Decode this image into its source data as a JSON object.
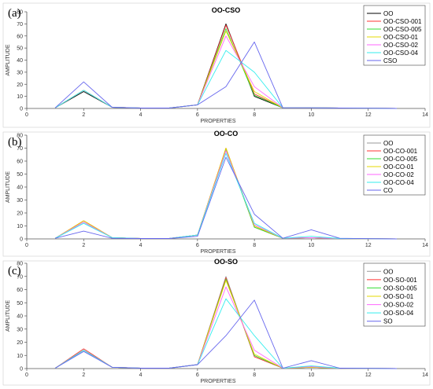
{
  "chart_data": [
    {
      "type": "line",
      "panel_label": "(a)",
      "title": "OO-CSO",
      "xlabel": "PROPERTIES",
      "ylabel": "AMPLITUDE",
      "xlim": [
        0,
        14
      ],
      "ylim": [
        0,
        80
      ],
      "xticks": [
        0,
        2,
        4,
        6,
        8,
        10,
        12,
        14
      ],
      "yticks": [
        0,
        10,
        20,
        30,
        40,
        50,
        60,
        70,
        80
      ],
      "legend_position": "top-right",
      "x": [
        1,
        2,
        3,
        4,
        5,
        6,
        7,
        8,
        9,
        10,
        11,
        12,
        13
      ],
      "series": [
        {
          "name": "OO",
          "color": "#000000",
          "values": [
            0.5,
            14,
            1,
            0.3,
            0.3,
            3,
            70,
            10,
            0.5,
            0.5,
            0.3,
            0.2,
            0
          ]
        },
        {
          "name": "OO-CSO-001",
          "color": "#ff3333",
          "values": [
            0.5,
            15,
            1,
            0.3,
            0.3,
            3,
            69,
            12,
            0.5,
            0.5,
            0.3,
            0.2,
            0
          ]
        },
        {
          "name": "OO-CSO-005",
          "color": "#33dd33",
          "values": [
            0.5,
            15,
            1,
            0.3,
            0.3,
            3,
            66,
            11,
            0.5,
            0.5,
            0.3,
            0.2,
            0
          ]
        },
        {
          "name": "OO-CSO-01",
          "color": "#e6d800",
          "values": [
            0.5,
            15,
            1,
            0.3,
            0.3,
            3,
            64,
            14,
            0.5,
            0.5,
            0.3,
            0.2,
            0
          ]
        },
        {
          "name": "OO-CSO-02",
          "color": "#ff66ff",
          "values": [
            0.5,
            15,
            1,
            0.3,
            0.3,
            3,
            60,
            18,
            0.5,
            0.5,
            0.3,
            0.2,
            0
          ]
        },
        {
          "name": "OO-CSO-04",
          "color": "#33eeee",
          "values": [
            0.5,
            15,
            1,
            0.3,
            0.3,
            3,
            48,
            30,
            0.5,
            0.5,
            0.3,
            0.2,
            0
          ]
        },
        {
          "name": "CSO",
          "color": "#6666ee",
          "values": [
            0.5,
            22,
            1,
            0.3,
            0.3,
            3,
            18,
            55,
            0.5,
            0.5,
            0.3,
            0.2,
            0
          ]
        }
      ]
    },
    {
      "type": "line",
      "panel_label": "(b)",
      "title": "OO-CO",
      "xlabel": "PROPERTIES",
      "ylabel": "AMPLITUDE",
      "xlim": [
        0,
        14
      ],
      "ylim": [
        0,
        80
      ],
      "xticks": [
        0,
        2,
        4,
        6,
        8,
        10,
        12,
        14
      ],
      "yticks": [
        0,
        10,
        20,
        30,
        40,
        50,
        60,
        70,
        80
      ],
      "legend_position": "top-right",
      "x": [
        1,
        2,
        3,
        4,
        5,
        6,
        7,
        8,
        9,
        10,
        11,
        12,
        13
      ],
      "series": [
        {
          "name": "OO",
          "color": "#999999",
          "values": [
            0.5,
            14,
            1,
            0.3,
            0.3,
            3,
            70,
            10,
            0.5,
            1,
            0.3,
            0.2,
            0
          ]
        },
        {
          "name": "OO-CO-001",
          "color": "#ff3333",
          "values": [
            0.5,
            14,
            1,
            0.3,
            0.3,
            3,
            70,
            9,
            0.5,
            1,
            0.3,
            0.2,
            0
          ]
        },
        {
          "name": "OO-CO-005",
          "color": "#33dd33",
          "values": [
            0.5,
            13,
            1,
            0.3,
            0.3,
            3,
            69,
            9,
            0.5,
            1,
            0.3,
            0.2,
            0
          ]
        },
        {
          "name": "OO-CO-01",
          "color": "#e6d800",
          "values": [
            0.5,
            14,
            1,
            0.3,
            0.3,
            3,
            70,
            10,
            0.5,
            1,
            0.3,
            0.2,
            0
          ]
        },
        {
          "name": "OO-CO-02",
          "color": "#ff66ff",
          "values": [
            0.5,
            13,
            1,
            0.3,
            0.3,
            3,
            68,
            11,
            0.5,
            1,
            0.3,
            0.2,
            0
          ]
        },
        {
          "name": "OO-CO-04",
          "color": "#33eeee",
          "values": [
            0.5,
            12,
            1,
            0.3,
            0.3,
            3,
            66,
            12,
            0.5,
            2,
            0.3,
            0.2,
            0
          ]
        },
        {
          "name": "CO",
          "color": "#6666ee",
          "values": [
            0.5,
            6,
            0.5,
            0.3,
            0.3,
            2,
            63,
            19,
            0.5,
            7,
            0.5,
            0.2,
            0
          ]
        }
      ]
    },
    {
      "type": "line",
      "panel_label": "(c)",
      "title": "OO-SO",
      "xlabel": "PROPERTIES",
      "ylabel": "AMPLITUDE",
      "xlim": [
        0,
        14
      ],
      "ylim": [
        0,
        80
      ],
      "xticks": [
        0,
        2,
        4,
        6,
        8,
        10,
        12,
        14
      ],
      "yticks": [
        0,
        10,
        20,
        30,
        40,
        50,
        60,
        70,
        80
      ],
      "legend_position": "top-right",
      "x": [
        1,
        2,
        3,
        4,
        5,
        6,
        7,
        8,
        9,
        10,
        11,
        12,
        13
      ],
      "series": [
        {
          "name": "OO",
          "color": "#999999",
          "values": [
            0.3,
            14,
            1,
            0.3,
            0.3,
            3,
            70,
            9,
            0.3,
            1,
            0.3,
            0.2,
            0
          ]
        },
        {
          "name": "OO-SO-001",
          "color": "#ff3333",
          "values": [
            0.3,
            15,
            1,
            0.3,
            0.3,
            3,
            69,
            9,
            0.3,
            1,
            0.3,
            0.2,
            0
          ]
        },
        {
          "name": "OO-SO-005",
          "color": "#33dd33",
          "values": [
            0.3,
            14,
            1,
            0.3,
            0.3,
            3,
            68,
            10,
            0.3,
            1,
            0.3,
            0.2,
            0
          ]
        },
        {
          "name": "OO-SO-01",
          "color": "#e6d800",
          "values": [
            0.3,
            14,
            1,
            0.3,
            0.3,
            3,
            67,
            11,
            0.3,
            1,
            0.3,
            0.2,
            0
          ]
        },
        {
          "name": "OO-SO-02",
          "color": "#ff66ff",
          "values": [
            0.3,
            14,
            1,
            0.3,
            0.3,
            3,
            62,
            14,
            0.3,
            1.5,
            0.3,
            0.2,
            0
          ]
        },
        {
          "name": "OO-SO-04",
          "color": "#33eeee",
          "values": [
            0.3,
            14,
            1,
            0.3,
            0.3,
            3,
            53,
            25,
            0.3,
            2,
            0.3,
            0.2,
            0
          ]
        },
        {
          "name": "SO",
          "color": "#6666ee",
          "values": [
            0.3,
            13,
            1,
            0.3,
            0.3,
            3,
            25,
            52,
            0.3,
            6,
            0.3,
            0.2,
            0
          ]
        }
      ]
    }
  ]
}
